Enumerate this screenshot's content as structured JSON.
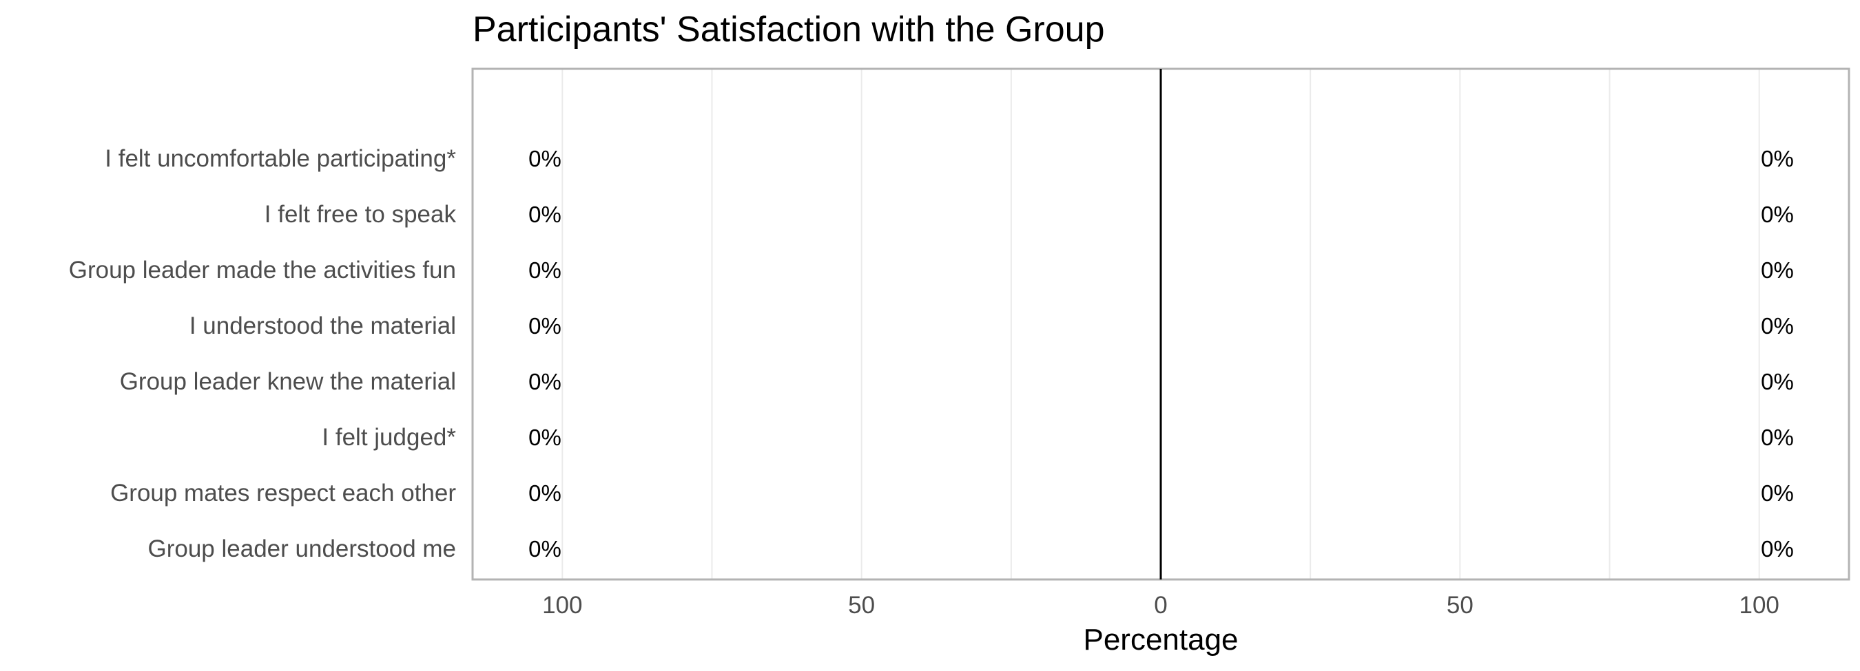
{
  "chart_data": {
    "type": "bar",
    "orientation": "horizontal",
    "diverging": true,
    "title": "Participants' Satisfaction with the Group",
    "xlabel": "Percentage",
    "ylabel": "",
    "xlim": [
      -115,
      115
    ],
    "xticks": [
      -100,
      -50,
      0,
      50,
      100
    ],
    "xtick_labels": [
      "100",
      "50",
      "0",
      "50",
      "100"
    ],
    "grid": true,
    "legend": "none",
    "categories": [
      "I felt uncomfortable participating*",
      "I felt free to speak",
      "Group leader made the activities fun",
      "I understood the material",
      "Group leader knew the material",
      "I felt judged*",
      "Group mates respect each other",
      "Group leader understood me"
    ],
    "series": [
      {
        "values": [
          0,
          0,
          0,
          0,
          0,
          0,
          0,
          0
        ]
      },
      {
        "values": [
          0,
          0,
          0,
          0,
          0,
          0,
          0,
          0
        ]
      }
    ],
    "left_labels": [
      "0%",
      "0%",
      "0%",
      "0%",
      "0%",
      "0%",
      "0%",
      "0%"
    ],
    "right_labels": [
      "0%",
      "0%",
      "0%",
      "0%",
      "0%",
      "0%",
      "0%",
      "0%"
    ],
    "colors": {
      "panel_border": "#b3b3b3",
      "zero_line": "#000000",
      "grid": "#ebebeb"
    }
  }
}
